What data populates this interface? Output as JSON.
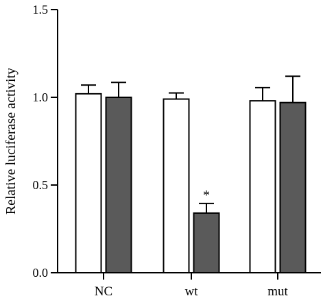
{
  "chart_data": {
    "type": "bar",
    "title": "",
    "xlabel": "",
    "ylabel": "Relative luciferase activity",
    "ylim": [
      0.0,
      1.5
    ],
    "yticks": [
      "0.0",
      "0.5",
      "1.0",
      "1.5"
    ],
    "ytick_values": [
      0.0,
      0.5,
      1.0,
      1.5
    ],
    "categories": [
      "NC",
      "wt",
      "mut"
    ],
    "series": [
      {
        "color": "#ffffff",
        "values": [
          1.02,
          0.99,
          0.98
        ],
        "errors": [
          0.05,
          0.035,
          0.075
        ]
      },
      {
        "color": "#5a5a5a",
        "values": [
          1.0,
          0.34,
          0.97
        ],
        "errors": [
          0.085,
          0.055,
          0.15
        ]
      }
    ],
    "annotations": [
      {
        "category": "wt",
        "series_index": 1,
        "text": "*"
      }
    ],
    "grid": false,
    "legend": "none"
  }
}
